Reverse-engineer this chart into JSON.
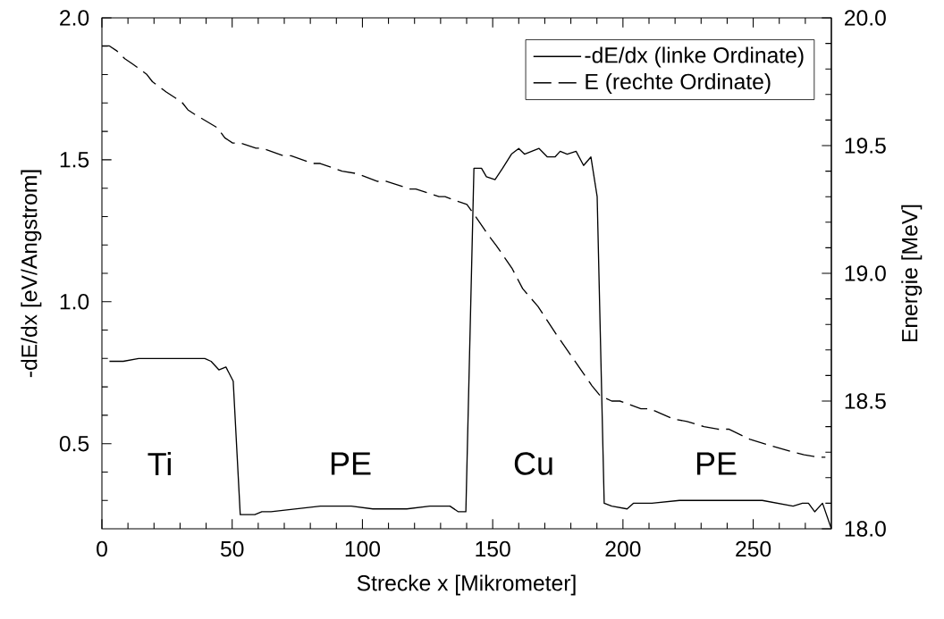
{
  "chart_data": {
    "type": "line",
    "xlabel": "Strecke x [Mikrometer]",
    "ylabel": "-dE/dx [eV/Angstrom]",
    "y2label": "Energie [MeV]",
    "xlim": [
      0,
      280
    ],
    "xticks": [
      0,
      {
        "value": 10,
        "label": null
      },
      {
        "value": 20,
        "label": null
      },
      {
        "value": 30,
        "label": null
      },
      {
        "value": 40,
        "label": null
      },
      50,
      {
        "value": 60,
        "label": null
      },
      {
        "value": 70,
        "label": null
      },
      {
        "value": 80,
        "label": null
      },
      {
        "value": 90,
        "label": null
      },
      100,
      {
        "value": 110,
        "label": null
      },
      {
        "value": 120,
        "label": null
      },
      {
        "value": 130,
        "label": null
      },
      {
        "value": 140,
        "label": null
      },
      150,
      {
        "value": 160,
        "label": null
      },
      {
        "value": 170,
        "label": null
      },
      {
        "value": 180,
        "label": null
      },
      {
        "value": 190,
        "label": null
      },
      200,
      {
        "value": 210,
        "label": null
      },
      {
        "value": 220,
        "label": null
      },
      {
        "value": 230,
        "label": null
      },
      {
        "value": 240,
        "label": null
      },
      250,
      {
        "value": 260,
        "label": null
      },
      {
        "value": 270,
        "label": null
      }
    ],
    "ylim": [
      0.2,
      2.0
    ],
    "yticks": [
      {
        "value": 0.3,
        "label": null
      },
      {
        "value": 0.4,
        "label": null
      },
      0.5,
      {
        "value": 0.6,
        "label": null
      },
      {
        "value": 0.7,
        "label": null
      },
      {
        "value": 0.8,
        "label": null
      },
      {
        "value": 0.9,
        "label": null
      },
      {
        "value": 1,
        "label": "1.0"
      },
      {
        "value": 1.1,
        "label": null
      },
      {
        "value": 1.2,
        "label": null
      },
      {
        "value": 1.3,
        "label": null
      },
      {
        "value": 1.4,
        "label": null
      },
      1.5,
      {
        "value": 1.6,
        "label": null
      },
      {
        "value": 1.7,
        "label": null
      },
      {
        "value": 1.8,
        "label": null
      },
      {
        "value": 1.9,
        "label": null
      },
      {
        "value": 2,
        "label": "2.0"
      }
    ],
    "y2lim": [
      18,
      20
    ],
    "y2ticks": [
      {
        "value": 18,
        "label": "18.0"
      },
      {
        "value": 18.1,
        "label": null
      },
      {
        "value": 18.2,
        "label": null
      },
      {
        "value": 18.3,
        "label": null
      },
      {
        "value": 18.4,
        "label": null
      },
      18.5,
      {
        "value": 18.6,
        "label": null
      },
      {
        "value": 18.7,
        "label": null
      },
      {
        "value": 18.8,
        "label": null
      },
      {
        "value": 18.9,
        "label": null
      },
      {
        "value": 19,
        "label": "19.0"
      },
      {
        "value": 19.1,
        "label": null
      },
      {
        "value": 19.2,
        "label": null
      },
      {
        "value": 19.3,
        "label": null
      },
      {
        "value": 19.4,
        "label": null
      },
      19.5,
      {
        "value": 19.6,
        "label": null
      },
      {
        "value": 19.7,
        "label": null
      },
      {
        "value": 19.8,
        "label": null
      },
      {
        "value": 19.9,
        "label": null
      },
      {
        "value": 20,
        "label": "20.0"
      }
    ],
    "legend": "top right",
    "grid": false,
    "marker": "none",
    "series": [
      {
        "name": "-dE/dx (linke Ordinate)",
        "color": "#000000",
        "line_style": "solid",
        "x": [
          2.9,
          8.2,
          14.1,
          20.0,
          25.9,
          30.7,
          34.2,
          39.5,
          41.9,
          44.9,
          47.6,
          50.4,
          53.1,
          58.7,
          61.4,
          64.9,
          74.4,
          83.9,
          87.4,
          95.7,
          104.0,
          117.0,
          125.9,
          133.6,
          136.8,
          139.7,
          142.8,
          145.7,
          147.6,
          150.9,
          153.8,
          157.2,
          160.0,
          162.2,
          167.8,
          171.0,
          173.9,
          175.9,
          178.6,
          182.0,
          184.9,
          187.7,
          190.1,
          192.8,
          195.7,
          201.6,
          204.0,
          211.1,
          221.7,
          228.8,
          234.7,
          246.5,
          253.5,
          265.3,
          268.9,
          271.2,
          273.6,
          276.6,
          280
        ],
        "values": [
          0.79,
          0.79,
          0.8,
          0.8,
          0.8,
          0.8,
          0.8,
          0.8,
          0.79,
          0.76,
          0.77,
          0.72,
          0.25,
          0.25,
          0.26,
          0.26,
          0.27,
          0.28,
          0.28,
          0.28,
          0.27,
          0.27,
          0.28,
          0.28,
          0.26,
          0.26,
          1.47,
          1.47,
          1.44,
          1.43,
          1.47,
          1.52,
          1.54,
          1.52,
          1.54,
          1.51,
          1.51,
          1.53,
          1.52,
          1.53,
          1.48,
          1.51,
          1.37,
          0.29,
          0.28,
          0.27,
          0.29,
          0.29,
          0.3,
          0.3,
          0.3,
          0.3,
          0.3,
          0.28,
          0.29,
          0.29,
          0.26,
          0.29,
          0.2
        ]
      },
      {
        "name": "E (rechte Ordinate)",
        "color": "#000000",
        "line_style": "dashed",
        "axis": "y2",
        "x": [
          0,
          2.9,
          5.8,
          8.8,
          11.7,
          17.1,
          19.4,
          24.7,
          30.7,
          33.0,
          36.0,
          44.3,
          47.2,
          50.2,
          53.1,
          59.1,
          61.4,
          69.7,
          72.6,
          80.9,
          83.8,
          92.2,
          98.1,
          105.8,
          109.3,
          118.2,
          120.5,
          129.4,
          131.7,
          137.1,
          140.1,
          143.6,
          148.3,
          151.3,
          157.4,
          161.5,
          167.4,
          174.5,
          178.6,
          188.1,
          191.3,
          195.7,
          198.8,
          206.9,
          210.4,
          219.3,
          224.6,
          231.1,
          236.4,
          240.6,
          248.8,
          255.3,
          265.3,
          269.5,
          274.8,
          277.7
        ],
        "values": [
          19.89,
          19.89,
          19.87,
          19.84,
          19.82,
          19.78,
          19.75,
          19.71,
          19.67,
          19.64,
          19.62,
          19.57,
          19.53,
          19.51,
          19.51,
          19.49,
          19.49,
          19.46,
          19.46,
          19.43,
          19.43,
          19.4,
          19.39,
          19.36,
          19.36,
          19.33,
          19.33,
          19.3,
          19.3,
          19.28,
          19.27,
          19.22,
          19.15,
          19.11,
          19.02,
          18.94,
          18.87,
          18.76,
          18.7,
          18.56,
          18.52,
          18.5,
          18.5,
          18.47,
          18.47,
          18.43,
          18.42,
          18.4,
          18.39,
          18.39,
          18.35,
          18.33,
          18.3,
          18.29,
          18.28,
          18.28
        ]
      }
    ],
    "annotations": [
      "Ti",
      "PE",
      "Cu",
      "PE"
    ]
  }
}
